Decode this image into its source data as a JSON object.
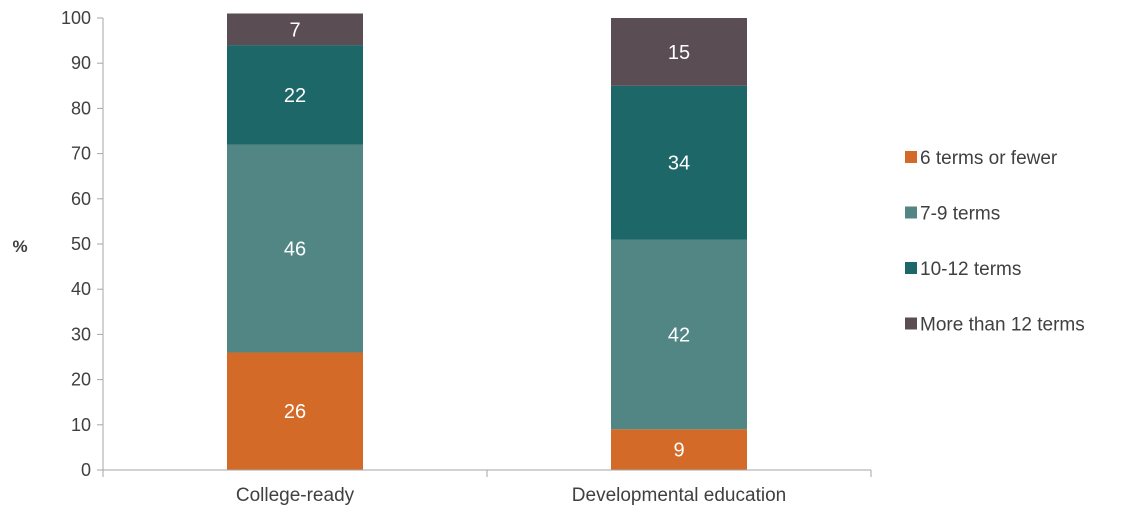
{
  "chart_data": {
    "type": "bar",
    "stacked": true,
    "title": "",
    "xlabel": "",
    "ylabel": "%",
    "ylim": [
      0,
      100
    ],
    "yticks": [
      0,
      10,
      20,
      30,
      40,
      50,
      60,
      70,
      80,
      90,
      100
    ],
    "categories": [
      "College-ready",
      "Developmental education"
    ],
    "series": [
      {
        "name": "6 terms or fewer",
        "values": [
          26,
          9
        ],
        "color": "#D46A27"
      },
      {
        "name": "7-9 terms",
        "values": [
          46,
          42
        ],
        "color": "#528685"
      },
      {
        "name": "10-12 terms",
        "values": [
          22,
          34
        ],
        "color": "#1D6768"
      },
      {
        "name": "More than 12 terms",
        "values": [
          7,
          15
        ],
        "color": "#5A4D53"
      }
    ],
    "legend_position": "right",
    "grid": false
  }
}
